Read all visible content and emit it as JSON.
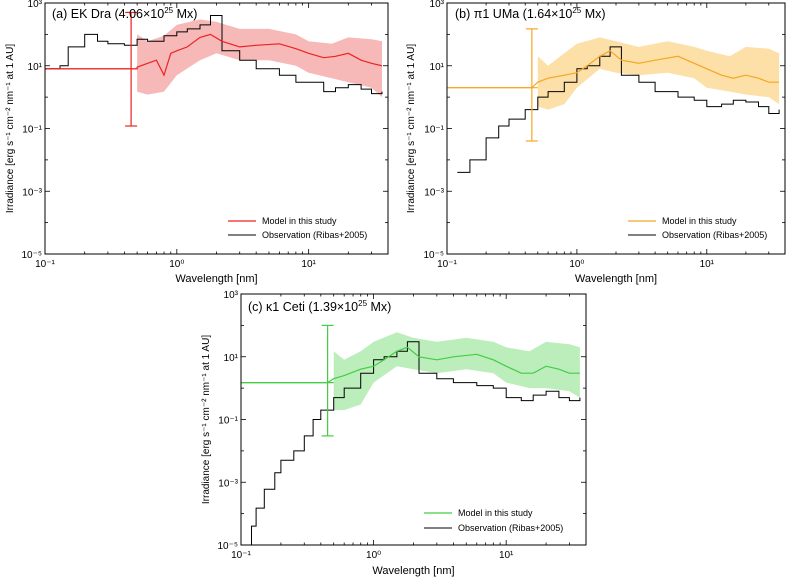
{
  "chart_data": [
    {
      "type": "line",
      "title": "(a) EK Dra (4.06×10²⁵ Mx)",
      "title_main": "(a) EK Dra (4.06×10",
      "title_exp": "25",
      "title_tail": " Mx)",
      "xlabel": "Wavelength [nm]",
      "ylabel": "Irradiance [erg s⁻¹ cm⁻² nm⁻¹ at 1 AU]",
      "xscale": "log",
      "yscale": "log",
      "xlim": [
        0.1,
        40
      ],
      "ylim": [
        1e-05,
        1000
      ],
      "x_ticks": [
        0.1,
        1,
        10
      ],
      "x_tick_labels": [
        "10⁻¹",
        "10⁰",
        "10¹"
      ],
      "y_ticks": [
        1e-05,
        0.001,
        0.1,
        10,
        1000
      ],
      "y_tick_labels": [
        "10⁻⁵",
        "10⁻³",
        "10⁻¹",
        "10¹",
        "10³"
      ],
      "model_color": "#ee2222",
      "band_color": "#f4a0a0",
      "legend": [
        "Model in this study",
        "Observation (Ribas+2005)"
      ],
      "legend_position": "bottom-right",
      "observation": {
        "x": [
          0.1,
          0.13,
          0.15,
          0.2,
          0.25,
          0.3,
          0.4,
          0.5,
          0.6,
          0.8,
          1.0,
          1.2,
          1.5,
          1.8,
          2.2,
          3,
          4,
          6,
          8,
          10,
          13,
          16,
          20,
          25,
          30,
          36
        ],
        "y": [
          8,
          10,
          40,
          100,
          60,
          50,
          45,
          70,
          60,
          90,
          120,
          150,
          200,
          400,
          30,
          15,
          8,
          5,
          3,
          3,
          1.5,
          2,
          2.5,
          1.8,
          1.3,
          1.5
        ]
      },
      "model": {
        "x": [
          0.1,
          0.5,
          0.5,
          0.6,
          0.7,
          0.8,
          0.9,
          1.0,
          1.2,
          1.5,
          1.8,
          2.2,
          3,
          4,
          6,
          8,
          10,
          13,
          16,
          20,
          25,
          30,
          36
        ],
        "y": [
          8,
          8,
          9,
          12,
          15,
          5,
          25,
          30,
          40,
          80,
          100,
          60,
          40,
          45,
          50,
          35,
          25,
          18,
          20,
          25,
          15,
          12,
          10
        ]
      },
      "band": {
        "x": [
          0.5,
          0.6,
          0.8,
          1.0,
          1.5,
          2,
          3,
          5,
          8,
          10,
          15,
          20,
          30,
          36
        ],
        "lower": [
          1.5,
          1.2,
          1.5,
          5,
          15,
          25,
          15,
          15,
          10,
          6,
          4,
          3,
          2,
          1
        ],
        "upper": [
          100,
          60,
          90,
          200,
          300,
          250,
          150,
          150,
          100,
          60,
          50,
          80,
          70,
          60
        ]
      },
      "xray_point": {
        "x_lo": 0.1,
        "x_hi": 0.5,
        "x": 0.45,
        "y": 8,
        "y_lo": 0.12,
        "y_hi": 500
      }
    },
    {
      "type": "line",
      "title": "(b) π1 UMa (1.64×10²⁵ Mx)",
      "title_main": "(b) π1 UMa (1.64×10",
      "title_exp": "25",
      "title_tail": " Mx)",
      "xlabel": "Wavelength [nm]",
      "ylabel": "Irradiance [erg s⁻¹ cm⁻² nm⁻¹ at 1 AU]",
      "xscale": "log",
      "yscale": "log",
      "xlim": [
        0.1,
        40
      ],
      "ylim": [
        1e-05,
        1000
      ],
      "x_ticks": [
        0.1,
        1,
        10
      ],
      "x_tick_labels": [
        "10⁻¹",
        "10⁰",
        "10¹"
      ],
      "y_ticks": [
        1e-05,
        0.001,
        0.1,
        10,
        1000
      ],
      "y_tick_labels": [
        "10⁻⁵",
        "10⁻³",
        "10⁻¹",
        "10¹",
        "10³"
      ],
      "model_color": "#f5a623",
      "band_color": "#fbd58a",
      "legend": [
        "Model in this study",
        "Observation (Ribas+2005)"
      ],
      "legend_position": "bottom-right",
      "observation": {
        "x": [
          0.12,
          0.15,
          0.2,
          0.25,
          0.3,
          0.4,
          0.5,
          0.6,
          0.8,
          1.0,
          1.2,
          1.5,
          1.8,
          2.2,
          3,
          4,
          6,
          8,
          10,
          13,
          16,
          20,
          25,
          30,
          36
        ],
        "y": [
          0.004,
          0.01,
          0.05,
          0.12,
          0.2,
          0.4,
          1,
          1.5,
          3,
          8,
          10,
          20,
          40,
          5,
          3,
          1.5,
          1,
          0.8,
          0.5,
          0.6,
          0.8,
          0.7,
          0.5,
          0.3,
          0.4
        ]
      },
      "model": {
        "x": [
          0.1,
          0.45,
          0.5,
          0.6,
          0.8,
          1.0,
          1.2,
          1.5,
          1.8,
          2.2,
          3,
          4,
          6,
          8,
          10,
          13,
          16,
          20,
          25,
          30,
          36
        ],
        "y": [
          2,
          2,
          3,
          4,
          5,
          6,
          10,
          20,
          30,
          15,
          12,
          15,
          20,
          12,
          8,
          5,
          4,
          5,
          4,
          3,
          3
        ]
      },
      "band": {
        "x": [
          0.5,
          0.6,
          0.8,
          1.0,
          1.5,
          2,
          3,
          5,
          8,
          10,
          15,
          20,
          30,
          36
        ],
        "lower": [
          0.5,
          0.4,
          0.6,
          2,
          8,
          6,
          5,
          6,
          4,
          2,
          1.5,
          1.2,
          1,
          0.6
        ],
        "upper": [
          20,
          10,
          25,
          50,
          80,
          60,
          40,
          60,
          40,
          30,
          20,
          40,
          35,
          25
        ]
      },
      "xray_point": {
        "x_lo": 0.1,
        "x_hi": 0.5,
        "x": 0.45,
        "y": 2,
        "y_lo": 0.04,
        "y_hi": 150
      }
    },
    {
      "type": "line",
      "title": "(c) κ1 Ceti (1.39×10²⁵ Mx)",
      "title_main": "(c) κ1 Ceti (1.39×10",
      "title_exp": "25",
      "title_tail": " Mx)",
      "xlabel": "Wavelength [nm]",
      "ylabel": "Irradiance [erg s⁻¹ cm⁻² nm⁻¹ at 1 AU]",
      "xscale": "log",
      "yscale": "log",
      "xlim": [
        0.1,
        40
      ],
      "ylim": [
        1e-05,
        1000
      ],
      "x_ticks": [
        0.1,
        1,
        10
      ],
      "x_tick_labels": [
        "10⁻¹",
        "10⁰",
        "10¹"
      ],
      "y_ticks": [
        1e-05,
        0.001,
        0.1,
        10,
        1000
      ],
      "y_tick_labels": [
        "10⁻⁵",
        "10⁻³",
        "10⁻¹",
        "10¹",
        "10³"
      ],
      "model_color": "#44cc44",
      "band_color": "#a6e8a6",
      "legend": [
        "Model in this study",
        "Observation (Ribas+2005)"
      ],
      "legend_position": "bottom-right",
      "observation": {
        "x": [
          0.11,
          0.12,
          0.13,
          0.15,
          0.18,
          0.2,
          0.25,
          0.3,
          0.35,
          0.4,
          0.5,
          0.6,
          0.8,
          1.0,
          1.2,
          1.5,
          1.8,
          2.2,
          3,
          4,
          6,
          8,
          10,
          13,
          16,
          20,
          25,
          30,
          36
        ],
        "y": [
          1e-05,
          4e-05,
          0.00015,
          0.0006,
          0.002,
          0.005,
          0.01,
          0.03,
          0.1,
          0.2,
          0.5,
          1,
          3,
          8,
          10,
          15,
          30,
          3,
          2,
          1.5,
          1.2,
          1,
          0.5,
          0.4,
          0.6,
          0.8,
          0.5,
          0.4,
          0.5
        ]
      },
      "model": {
        "x": [
          0.1,
          0.45,
          0.5,
          0.6,
          0.8,
          1.0,
          1.2,
          1.5,
          1.8,
          2.2,
          3,
          4,
          6,
          8,
          10,
          13,
          16,
          20,
          25,
          30,
          36
        ],
        "y": [
          1.5,
          1.5,
          2,
          2.5,
          4,
          5,
          8,
          15,
          20,
          10,
          8,
          10,
          12,
          8,
          5,
          3,
          3,
          5,
          4,
          3,
          3
        ]
      },
      "band": {
        "x": [
          0.5,
          0.6,
          0.8,
          1.0,
          1.5,
          2,
          3,
          5,
          8,
          10,
          15,
          20,
          30,
          36
        ],
        "lower": [
          0.2,
          0.2,
          0.3,
          1.5,
          5,
          4,
          3,
          4,
          3,
          1.5,
          1,
          1,
          0.8,
          0.5
        ],
        "upper": [
          15,
          8,
          15,
          30,
          60,
          40,
          30,
          40,
          30,
          20,
          15,
          30,
          25,
          20
        ]
      },
      "xray_point": {
        "x_lo": 0.1,
        "x_hi": 0.5,
        "x": 0.45,
        "y": 1.5,
        "y_lo": 0.03,
        "y_hi": 100
      }
    }
  ]
}
